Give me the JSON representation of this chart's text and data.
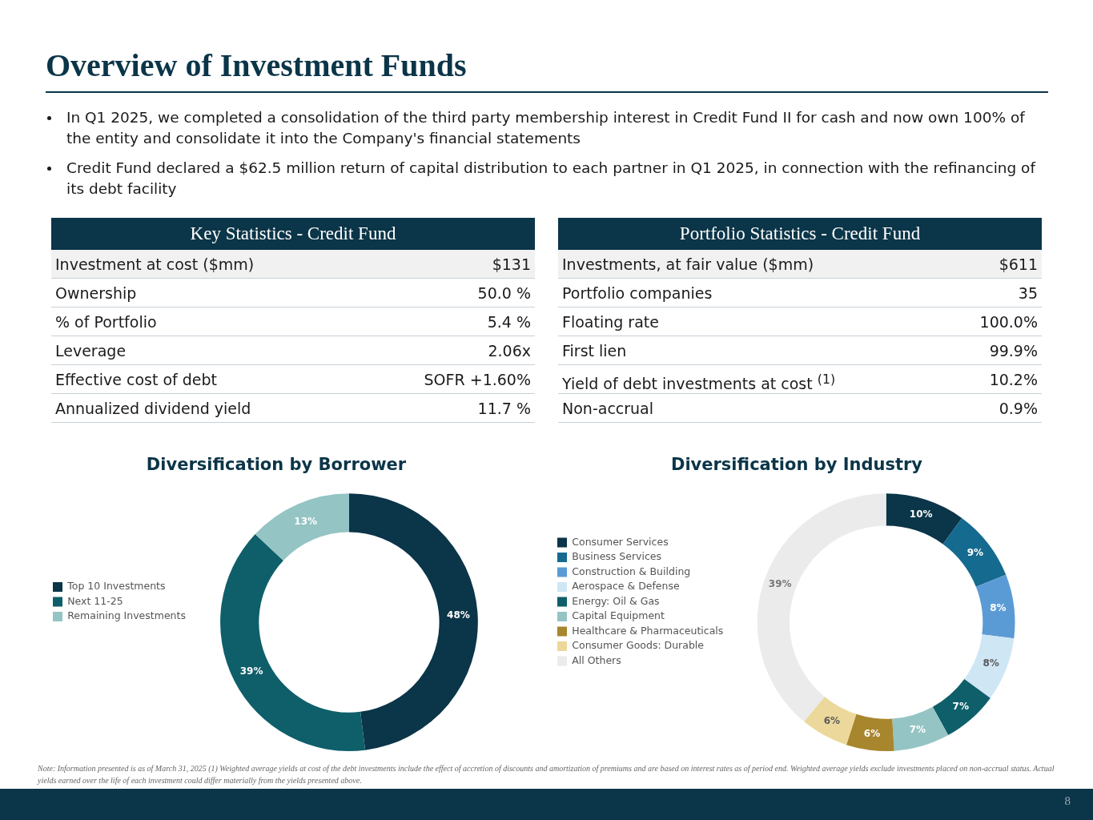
{
  "chart_data": [
    {
      "type": "other",
      "title": "Overview of Investment Funds",
      "annotations": [
        "In Q1 2025, we completed a consolidation of the third party membership interest in Credit Fund II for cash and now own 100% of the entity and consolidate it into the Company's financial statements",
        "Credit Fund declared a $62.5 million return of capital distribution to each partner in Q1 2025, in connection with the refinancing of its debt facility",
        "Key Statistics - Credit Fund",
        "Investment at cost ($mm)",
        "$131",
        "Ownership",
        "50.0 %",
        "% of Portfolio",
        "5.4 %",
        "Leverage",
        "2.06x",
        "Effective cost of debt",
        "SOFR +1.60%",
        "Annualized dividend yield",
        "11.7 %",
        "Portfolio Statistics - Credit Fund",
        "Investments, at fair value ($mm)",
        "$611",
        "Portfolio companies",
        "35",
        "Floating rate",
        "100.0%",
        "First lien",
        "99.9%",
        "Yield of debt investments at cost $^{(1)}$",
        "10.2%",
        "Non-accrual",
        "0.9%",
        "Note: Information presented is as of March 31, 2025 (1) Weighted average yields at cost of the debt investments include the effect of accretion of discounts and amortization of premiums and are based on interest rates as of period end. Weighted average yields exclude investments placed on non-accrual status. Actual yields earned over the life of each investment could differ materially from the yields presented above.",
        "8"
      ]
    },
    {
      "type": "donut",
      "title": "Diversification by Borrower",
      "categories": [
        "Top 10 Investments",
        "Next 11-25",
        "Remaining Investments"
      ],
      "values": [
        48,
        39,
        13
      ],
      "colors": [
        "#0b3548",
        "#0e5f6a",
        "#94c4c4"
      ],
      "value_labels": [
        "48%",
        "39%",
        "13%"
      ],
      "legend": "left"
    },
    {
      "type": "donut",
      "title": "Diversification by Industry",
      "categories": [
        "Consumer Services",
        "Business Services",
        "Construction & Building",
        "Aerospace & Defense",
        "Energy: Oil & Gas",
        "Capital Equipment",
        "Healthcare & Pharmaceuticals",
        "Consumer Goods: Durable",
        "All Others"
      ],
      "values": [
        10,
        9,
        8,
        8,
        7,
        7,
        6,
        6,
        39
      ],
      "colors": [
        "#0b3548",
        "#156a8f",
        "#5b9bd5",
        "#cfe6f5",
        "#0e5f6a",
        "#94c4c4",
        "#a8862e",
        "#ecd89a",
        "#ebebeb"
      ],
      "value_labels": [
        "10%",
        "9%",
        "8%",
        "8%",
        "7%",
        "7%",
        "6%",
        "6%",
        "39%"
      ],
      "legend": "left"
    }
  ]
}
